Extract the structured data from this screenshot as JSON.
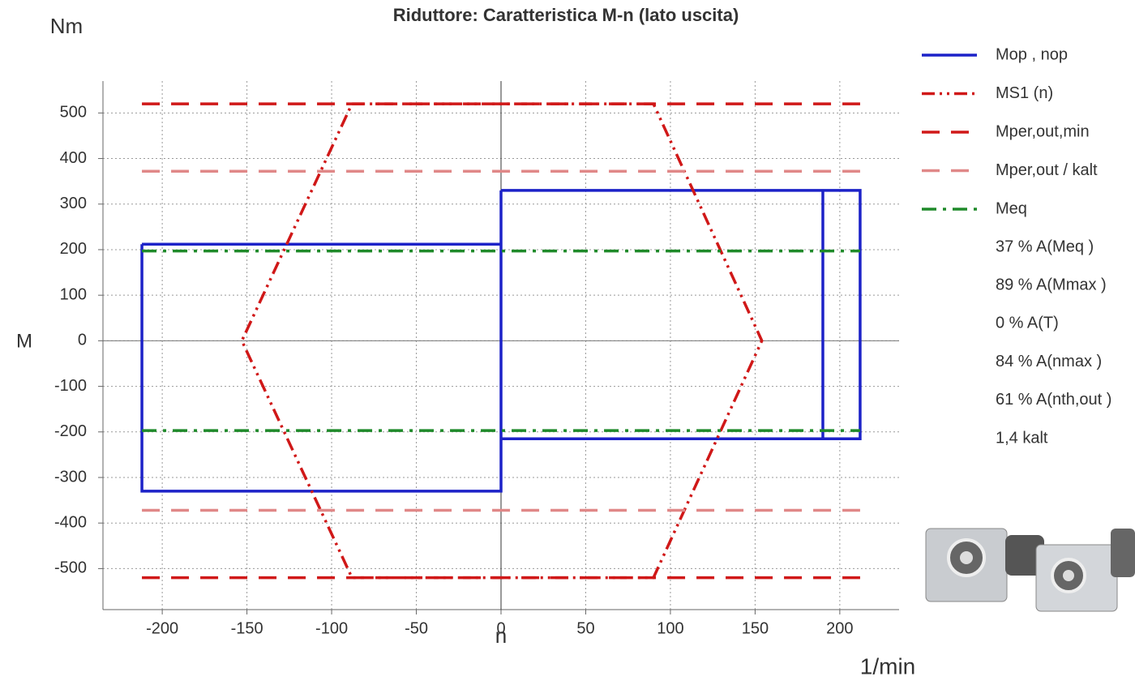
{
  "chart_data": {
    "type": "line",
    "title": "Riduttore: Caratteristica M-n (lato uscita)",
    "y_unit": "Nm",
    "y_label": "M",
    "x_label": "n",
    "x_unit": "1/min",
    "xlim": [
      -235,
      235
    ],
    "ylim": [
      -590,
      570
    ],
    "xticks": [
      -200,
      -150,
      -100,
      -50,
      0,
      50,
      100,
      150,
      200
    ],
    "yticks": [
      -500,
      -400,
      -300,
      -200,
      -100,
      0,
      100,
      200,
      300,
      400,
      500
    ],
    "grid": true,
    "series": [
      {
        "name": "Mop , nop",
        "color": "#1c22c8",
        "style": "solid",
        "x": [
          -212,
          0,
          0,
          -212,
          -212,
          null,
          0,
          212,
          212,
          0,
          0,
          null,
          190,
          190
        ],
        "values": [
          212,
          212,
          -330,
          -330,
          212,
          null,
          330,
          330,
          -215,
          -215,
          330,
          null,
          330,
          -215
        ]
      },
      {
        "name": "MS1 (n)",
        "color": "#d01818",
        "style": "dash-dot-dot",
        "x": [
          -88,
          90,
          154,
          90,
          -88,
          -153,
          -88
        ],
        "values": [
          520,
          520,
          0,
          -520,
          -520,
          0,
          520
        ]
      },
      {
        "name": "Mper,out,min",
        "color": "#d01818",
        "style": "dash",
        "x": [
          -212,
          212,
          null,
          -212,
          212
        ],
        "values": [
          520,
          520,
          null,
          -520,
          -520
        ]
      },
      {
        "name": "Mper,out / kalt",
        "color": "#e08888",
        "style": "dash",
        "x": [
          -212,
          212,
          null,
          -212,
          212
        ],
        "values": [
          372,
          372,
          null,
          -372,
          -372
        ]
      },
      {
        "name": "Meq",
        "color": "#1f8a2a",
        "style": "dash-dot",
        "x": [
          -212,
          212,
          null,
          -212,
          212
        ],
        "values": [
          197,
          197,
          null,
          -197,
          -197
        ]
      }
    ],
    "annotations": [
      "37 % A(Meq )",
      "89 % A(Mmax )",
      "0 % A(T)",
      "84 % A(nmax )",
      "61 % A(nth,out )",
      "1,4 kalt"
    ]
  }
}
